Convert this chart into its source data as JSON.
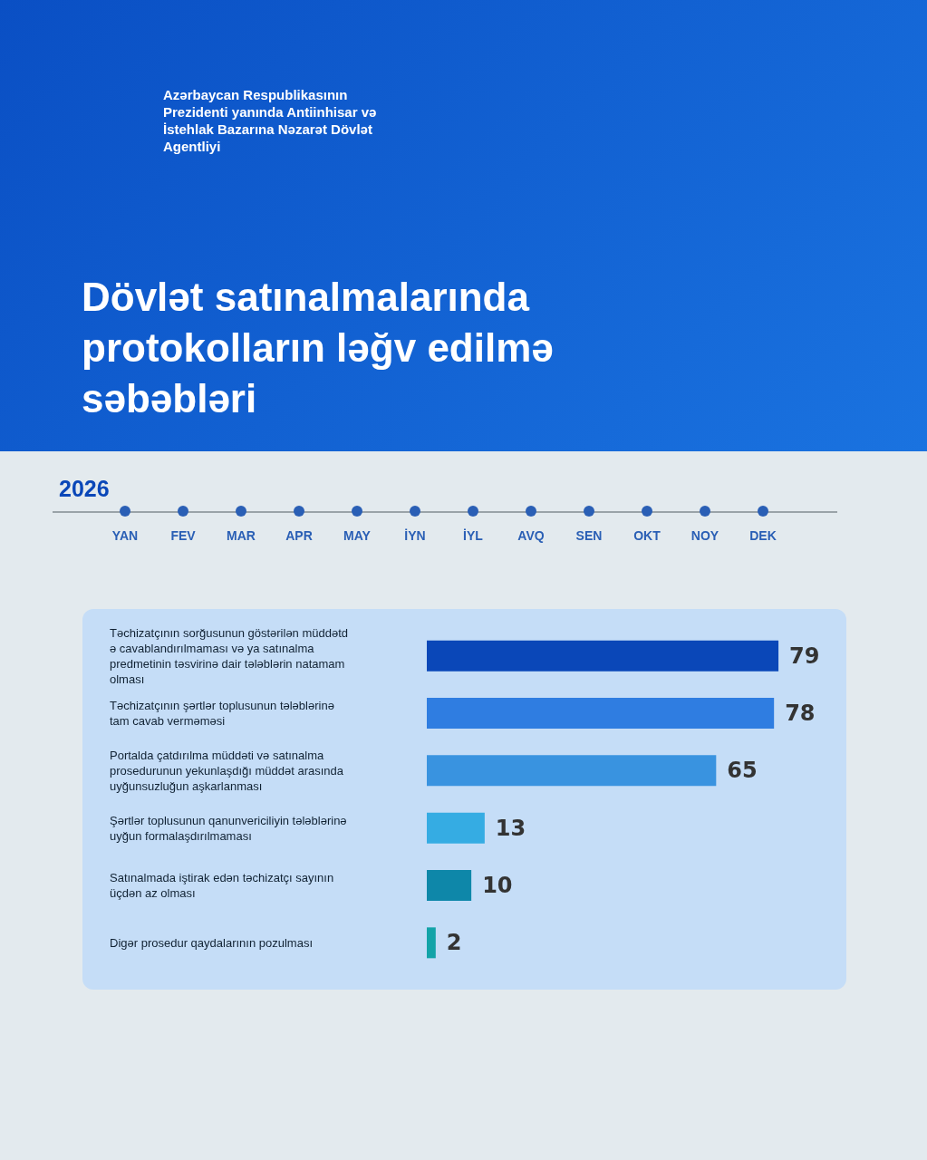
{
  "chart_data": {
    "type": "bar",
    "orientation": "horizontal",
    "title": "Dövlət satınalmalarında protokolların ləğv edilmə səbəbləri",
    "subtitle": "Azərbaycan Respublikasının Prezidenti yanında Antiinhisar və İstehlak Bazarına Nəzarət Dövlət Agentliyi",
    "annotations": [
      "2026",
      "YAN",
      "FEV",
      "MAR",
      "APR",
      "MAY",
      "İYN",
      "İYL",
      "AVQ",
      "SEN",
      "OKT",
      "NOY",
      "DEK"
    ],
    "categories": [
      "Təchizatçının sorğusunun göstərilən müddətdə cavablandırılmaması və ya satınalma predmetinin təsvirinə dair tələblərin natamam olması",
      "Təchizatçının şərtlər toplusunun tələblərinə tam cavab verməməsi",
      "Portalda çatdırılma müddəti və satınalma prosedurunun yekunlaşdığı müddət arasında uyğunsuzluğun aşkarlanması",
      "Şərtlər toplusunun qanunvericiliyin tələblərinə uyğun formalaşdırılmaması",
      "Satınalmada iştirak edən təchizatçı sayının üçdən az olması",
      "Digər prosedur qaydalarının pozulması"
    ],
    "values": [
      79,
      78,
      65,
      13,
      10,
      2
    ],
    "colors": [
      "#0a47b8",
      "#2f7de1",
      "#3993e0",
      "#35ace3",
      "#0e87a9",
      "#13a3a8"
    ],
    "data_labels": true
  }
}
